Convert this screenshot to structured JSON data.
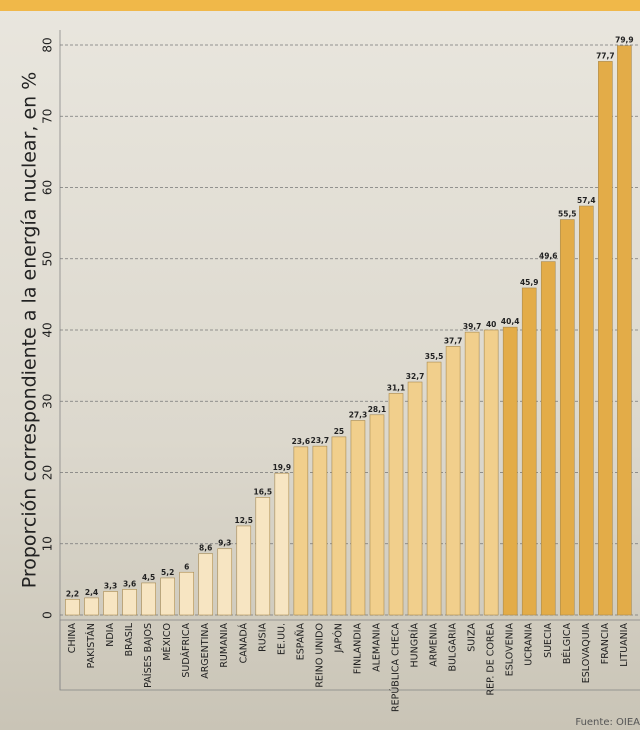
{
  "chart_data": {
    "type": "bar",
    "y_label": "Proporción correspondiente a la energía nuclear, en %",
    "source": "Fuente: OIEA",
    "categories": [
      "CHINA",
      "PAKISTÁN",
      "NDIA",
      "BRASIL",
      "PAÍSES BAJOS",
      "MÉXICO",
      "SUDÁFRICA",
      "ARGENTINA",
      "RUMANIA",
      "CANADÁ",
      "RUSIA",
      "EE.UU.",
      "ESPAÑA",
      "REINO UNIDO",
      "JAPÓN",
      "FINLANDIA",
      "ALEMANIA",
      "REPÚBLICA CHECA",
      "HUNGRÍA",
      "ARMENIA",
      "BULGARIA",
      "SUIZA",
      "REP. DE COREA",
      "ESLOVENIA",
      "UCRANIA",
      "SUECIA",
      "BÉLGICA",
      "ESLOVAQUIA",
      "FRANCIA",
      "LITUANIA"
    ],
    "values": [
      2.2,
      2.4,
      3.3,
      3.6,
      4.5,
      5.2,
      6,
      8.6,
      9.3,
      12.5,
      16.5,
      19.9,
      23.6,
      23.7,
      25,
      27.3,
      28.1,
      31.1,
      32.7,
      35.5,
      37.7,
      39.7,
      40,
      40.4,
      45.9,
      49.6,
      55.5,
      57.4,
      77.7,
      79.9
    ],
    "value_labels": [
      "2,2",
      "2,4",
      "3,3",
      "3,6",
      "4,5",
      "5,2",
      "6",
      "8,6",
      "9,3",
      "12,5",
      "16,5",
      "19,9",
      "23,6",
      "23,7",
      "25",
      "27,3",
      "28,1",
      "31,1",
      "32,7",
      "35,5",
      "37,7",
      "39,7",
      "40",
      "40,4",
      "45,9",
      "49,6",
      "55,5",
      "57,4",
      "77,7",
      "79,9"
    ],
    "colors": [
      "#f7e5c2",
      "#f7e5c2",
      "#f7e5c2",
      "#f7e5c2",
      "#f7e5c2",
      "#f7e5c2",
      "#f7e5c2",
      "#f7e5c2",
      "#f7e5c2",
      "#f7e5c2",
      "#f7e5c2",
      "#f7e5c2",
      "#f1cf8c",
      "#f1cf8c",
      "#f1cf8c",
      "#f1cf8c",
      "#f1cf8c",
      "#f1cf8c",
      "#f1cf8c",
      "#f1cf8c",
      "#f1cf8c",
      "#f1cf8c",
      "#f1cf8c",
      "#e3ac48",
      "#e3ac48",
      "#e3ac48",
      "#e3ac48",
      "#e3ac48",
      "#e3ac48",
      "#e3ac48"
    ],
    "ylim": [
      0,
      80
    ],
    "yticks": [
      0,
      10,
      20,
      30,
      40,
      50,
      60,
      70,
      80
    ],
    "grid": true
  }
}
